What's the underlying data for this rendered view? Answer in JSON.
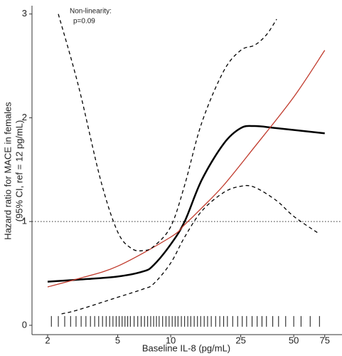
{
  "chart_data": {
    "type": "line",
    "annotation": [
      "Non-linearity:",
      "p=0.09"
    ],
    "xlabel": "Baseline IL-8 (pg/mL)",
    "ylabel": [
      "Hazard ratio for MACE in females",
      "(95% CI, ref = 12 pg/mL)"
    ],
    "xscale": "log",
    "xlim": [
      1.63,
      94
    ],
    "ylim": [
      -0.09,
      3.08
    ],
    "xticks": [
      2,
      5,
      10,
      25,
      50,
      75
    ],
    "yticks": [
      0,
      1,
      2,
      3
    ],
    "hline": 1,
    "series": [
      {
        "color": "#000000",
        "style": "solid",
        "width": 2.5,
        "x": [
          2,
          3,
          5,
          7,
          8,
          10,
          12,
          15,
          20,
          25,
          30,
          40,
          75
        ],
        "values": [
          0.42,
          0.44,
          0.47,
          0.52,
          0.58,
          0.78,
          1.0,
          1.4,
          1.75,
          1.9,
          1.92,
          1.9,
          1.85
        ]
      },
      {
        "color": "#c0392b",
        "style": "solid",
        "width": 1.3,
        "x": [
          2,
          3,
          5,
          10,
          12,
          15,
          20,
          30,
          50,
          75
        ],
        "values": [
          0.37,
          0.45,
          0.57,
          0.85,
          0.97,
          1.13,
          1.35,
          1.72,
          2.2,
          2.65
        ]
      },
      {
        "color": "#000000",
        "style": "dashed",
        "width": 1.3,
        "x": [
          2.3,
          3,
          4,
          5,
          6,
          7,
          8,
          10,
          12,
          15,
          20,
          25,
          30,
          35,
          40
        ],
        "values": [
          3.0,
          2.3,
          1.4,
          0.9,
          0.74,
          0.72,
          0.76,
          0.95,
          1.35,
          1.95,
          2.45,
          2.65,
          2.7,
          2.8,
          2.95
        ]
      },
      {
        "color": "#000000",
        "style": "dashed",
        "width": 1.3,
        "x": [
          2.4,
          3,
          5,
          7,
          8,
          10,
          12,
          15,
          20,
          25,
          30,
          40,
          50,
          70
        ],
        "values": [
          0.11,
          0.15,
          0.27,
          0.35,
          0.4,
          0.6,
          0.85,
          1.1,
          1.28,
          1.34,
          1.33,
          1.2,
          1.05,
          0.88
        ]
      }
    ],
    "rug": [
      2.1,
      2.3,
      2.5,
      2.7,
      2.9,
      3.1,
      3.3,
      3.5,
      3.7,
      3.9,
      4.1,
      4.3,
      4.5,
      4.7,
      4.9,
      5.1,
      5.3,
      5.5,
      5.7,
      5.9,
      6.2,
      6.5,
      6.8,
      7.1,
      7.4,
      7.7,
      8,
      8.3,
      8.6,
      9,
      9.4,
      9.8,
      10.2,
      10.6,
      11,
      11.5,
      12,
      12.5,
      13,
      13.6,
      14.2,
      14.8,
      15.5,
      16.2,
      17,
      18,
      19,
      20,
      21,
      22.5,
      24,
      25.5,
      27,
      29,
      31,
      33,
      35,
      38,
      41,
      45,
      50,
      55,
      62,
      70
    ]
  }
}
